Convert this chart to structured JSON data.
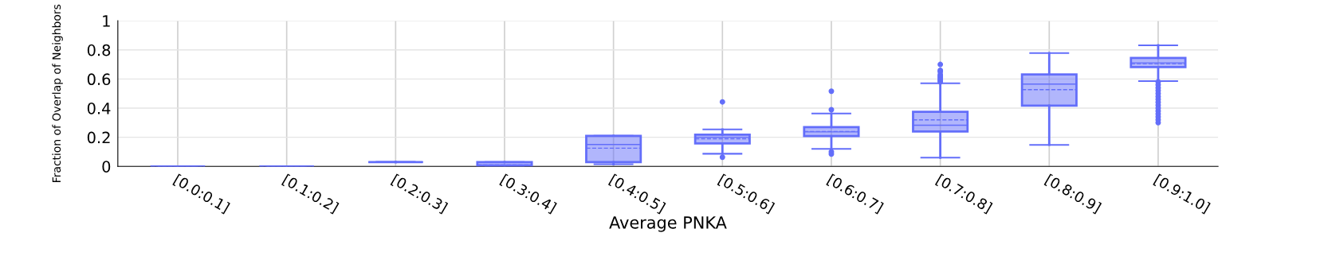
{
  "chart_data": {
    "type": "box",
    "xlabel": "Average PNKA",
    "ylabel": "Fraction of Overlap of Neighbors",
    "categories": [
      "[0.0:0.1]",
      "[0.1:0.2]",
      "[0.2:0.3]",
      "[0.3:0.4]",
      "[0.4:0.5]",
      "[0.5:0.6]",
      "[0.6:0.7]",
      "[0.7:0.8]",
      "[0.8:0.9]",
      "[0.9:1.0]"
    ],
    "ylim": [
      0,
      1
    ],
    "yticks": [
      0,
      0.2,
      0.4,
      0.6,
      0.8,
      1
    ],
    "grid": true,
    "series": [
      {
        "color": "#636efa",
        "boxes": [
          {
            "low": 0,
            "q1": 0,
            "median": 0,
            "q3": 0,
            "high": 0,
            "mean": 0
          },
          {
            "low": 0,
            "q1": 0,
            "median": 0,
            "q3": 0,
            "high": 0,
            "mean": 0
          },
          {
            "low": 0.03,
            "q1": 0.03,
            "median": 0.03,
            "q3": 0.03,
            "high": 0.03,
            "mean": 0.03
          },
          {
            "low": 0,
            "q1": 0,
            "median": 0.01,
            "q3": 0.03,
            "high": 0.03,
            "mean": 0.01
          },
          {
            "low": 0.015,
            "q1": 0.03,
            "median": 0.15,
            "q3": 0.21,
            "high": 0.21,
            "mean": 0.125
          },
          {
            "low": 0.087,
            "q1": 0.158,
            "median": 0.2,
            "q3": 0.218,
            "high": 0.254,
            "mean": 0.19,
            "outliers": [
              0.443,
              0.063
            ]
          },
          {
            "low": 0.12,
            "q1": 0.208,
            "median": 0.237,
            "q3": 0.27,
            "high": 0.363,
            "mean": 0.24,
            "outliers": [
              0.516,
              0.389,
              0.1,
              0.085
            ]
          },
          {
            "low": 0.06,
            "q1": 0.24,
            "median": 0.283,
            "q3": 0.375,
            "high": 0.571,
            "mean": 0.32,
            "outliers": [
              0.58,
              0.59,
              0.6,
              0.61,
              0.62,
              0.63,
              0.65,
              0.66,
              0.7
            ]
          },
          {
            "low": 0.148,
            "q1": 0.417,
            "median": 0.565,
            "q3": 0.632,
            "high": 0.778,
            "mean": 0.527
          },
          {
            "low": 0.586,
            "q1": 0.682,
            "median": 0.711,
            "q3": 0.745,
            "high": 0.832,
            "mean": 0.705,
            "outliers": [
              0.58,
              0.56,
              0.54,
              0.52,
              0.5,
              0.48,
              0.46,
              0.44,
              0.42,
              0.4,
              0.38,
              0.36,
              0.34,
              0.32,
              0.3
            ]
          }
        ]
      }
    ]
  }
}
